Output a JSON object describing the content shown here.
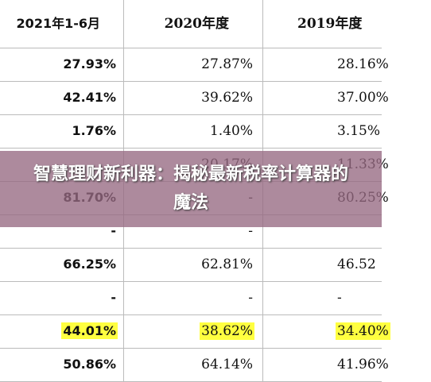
{
  "table": {
    "header": [
      "2021年1-6月",
      "2020年度",
      "2019年度"
    ],
    "rows": [
      [
        "27.93%",
        "27.87%",
        "28.16%"
      ],
      [
        "42.41%",
        "39.62%",
        "37.00%"
      ],
      [
        "1.76%",
        "1.40%",
        "3.15%"
      ],
      [
        null,
        "20.17%",
        "11.33%"
      ],
      [
        "81.70%",
        "-",
        "80.25%"
      ],
      [
        "-",
        "-",
        null
      ],
      [
        "66.25%",
        "62.81%",
        "46.52"
      ],
      [
        "-",
        "-",
        "-"
      ],
      [
        "44.01%",
        "38.62%",
        "34.40%"
      ],
      [
        "50.86%",
        "64.14%",
        "41.96%"
      ]
    ]
  },
  "banner": {
    "title": "智慧理财新利器：揭秘最新税率计算器的魔法"
  }
}
